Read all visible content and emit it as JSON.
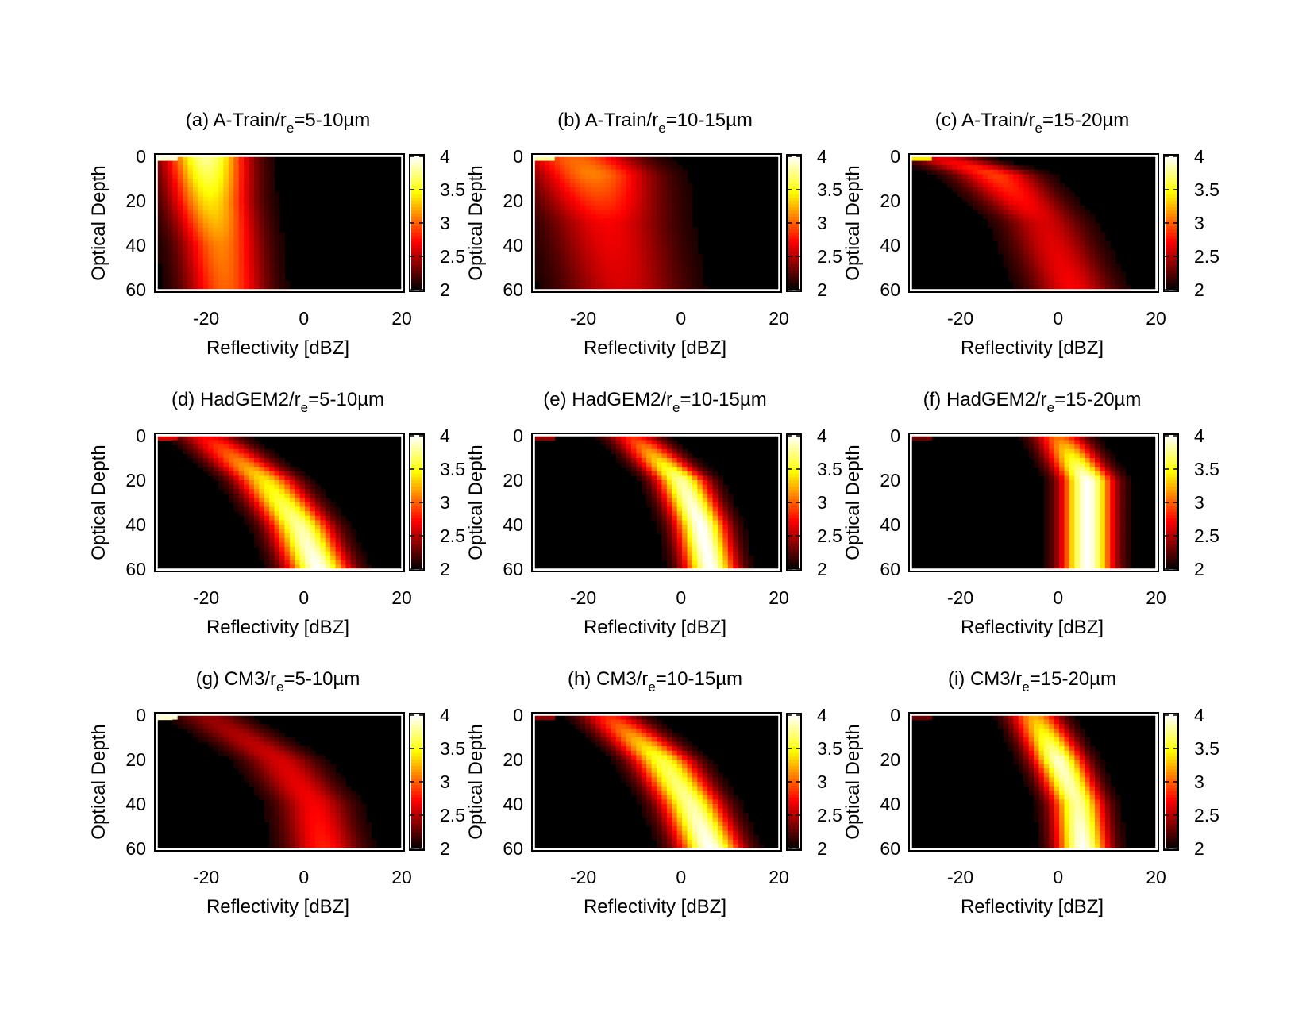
{
  "colorbar": {
    "ticks": [
      "4",
      "3.5",
      "3",
      "2.5",
      "2"
    ],
    "range": [
      2,
      4
    ]
  },
  "axes": {
    "xlabel": "Reflectivity [dBZ]",
    "ylabel": "Optical Depth",
    "xticks": [
      "-20",
      "0",
      "20"
    ],
    "yticks": [
      "0",
      "20",
      "40",
      "60"
    ],
    "xlim": [
      -30,
      20
    ],
    "ylim": [
      0,
      60
    ]
  },
  "chart_data": [
    {
      "type": "heatmap",
      "title_pre": "(a) A-Train/r",
      "title_sub": "e",
      "title_post": "=5-10µm",
      "ridge": [
        [
          0,
          -20,
          3.8
        ],
        [
          20,
          -19,
          3.4
        ],
        [
          40,
          -17,
          3.1
        ],
        [
          60,
          -16,
          3.0
        ]
      ],
      "width": 8,
      "corner": 3.9
    },
    {
      "type": "heatmap",
      "title_pre": "(b) A-Train/r",
      "title_sub": "e",
      "title_post": "=10-15µm",
      "ridge": [
        [
          0,
          -22,
          3.0
        ],
        [
          8,
          -18,
          3.1
        ],
        [
          30,
          -15,
          2.7
        ],
        [
          60,
          -12,
          2.6
        ]
      ],
      "width": 12,
      "corner": 3.8
    },
    {
      "type": "heatmap",
      "title_pre": "(c) A-Train/r",
      "title_sub": "e",
      "title_post": "=15-20µm",
      "ridge": [
        [
          0,
          -25,
          2.6
        ],
        [
          8,
          -13,
          2.9
        ],
        [
          30,
          -3,
          2.6
        ],
        [
          60,
          3,
          2.7
        ]
      ],
      "width": 8,
      "corner": 3.4
    },
    {
      "type": "heatmap",
      "title_pre": "(d) HadGEM2/r",
      "title_sub": "e",
      "title_post": "=5-10µm",
      "ridge": [
        [
          0,
          -20,
          2.7
        ],
        [
          20,
          -8,
          3.4
        ],
        [
          40,
          -1,
          3.8
        ],
        [
          60,
          3,
          4.0
        ]
      ],
      "width": 6,
      "corner": 2.6
    },
    {
      "type": "heatmap",
      "title_pre": "(e) HadGEM2/r",
      "title_sub": "e",
      "title_post": "=10-15µm",
      "ridge": [
        [
          0,
          -10,
          2.8
        ],
        [
          20,
          0,
          3.8
        ],
        [
          40,
          4,
          4.0
        ],
        [
          60,
          6,
          4.0
        ]
      ],
      "width": 5,
      "corner": 2.4
    },
    {
      "type": "heatmap",
      "title_pre": "(f) HadGEM2/r",
      "title_sub": "e",
      "title_post": "=15-20µm",
      "ridge": [
        [
          0,
          0,
          3.0
        ],
        [
          20,
          6,
          4.0
        ],
        [
          40,
          6,
          4.0
        ],
        [
          60,
          6,
          4.0
        ]
      ],
      "width": 5,
      "corner": 2.3
    },
    {
      "type": "heatmap",
      "title_pre": "(g) CM3/r",
      "title_sub": "e",
      "title_post": "=5-10µm",
      "ridge": [
        [
          0,
          -20,
          2.4
        ],
        [
          20,
          -5,
          2.6
        ],
        [
          40,
          2,
          2.7
        ],
        [
          60,
          4,
          2.8
        ]
      ],
      "width": 7,
      "corner": 3.9
    },
    {
      "type": "heatmap",
      "title_pre": "(h) CM3/r",
      "title_sub": "e",
      "title_post": "=10-15µm",
      "ridge": [
        [
          0,
          -15,
          2.8
        ],
        [
          20,
          -4,
          3.6
        ],
        [
          40,
          2,
          3.8
        ],
        [
          60,
          6,
          4.0
        ]
      ],
      "width": 6,
      "corner": 2.4
    },
    {
      "type": "heatmap",
      "title_pre": "(i) CM3/r",
      "title_sub": "e",
      "title_post": "=15-20µm",
      "ridge": [
        [
          0,
          -5,
          3.2
        ],
        [
          20,
          0,
          3.9
        ],
        [
          40,
          4,
          3.8
        ],
        [
          60,
          5,
          4.0
        ]
      ],
      "width": 5,
      "corner": 2.3
    }
  ]
}
